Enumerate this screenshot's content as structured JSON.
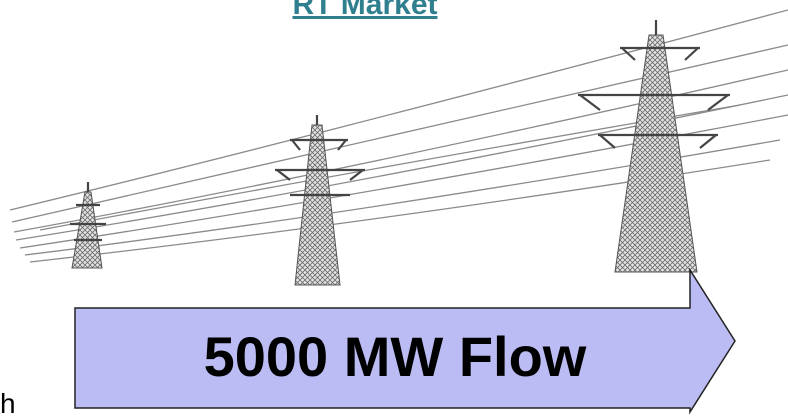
{
  "header": {
    "title": "RT Market"
  },
  "arrow": {
    "label": "5000 MW Flow"
  },
  "fragment": "h"
}
